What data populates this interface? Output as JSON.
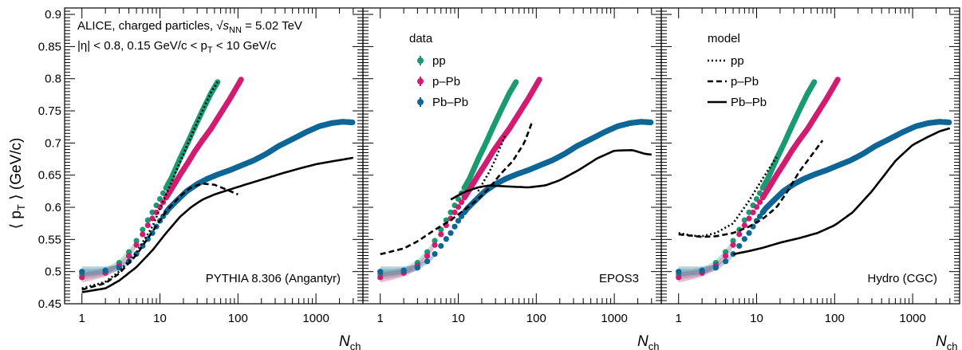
{
  "colors": {
    "pp": "#1a9a73",
    "pPb": "#d11c72",
    "PbPb": "#0e6696",
    "model": "#000000"
  },
  "axis": {
    "y_label_main": "⟨ p",
    "y_label_sub": "T",
    "y_label_unit": "⟩ (GeV/c)",
    "x_label_main": "N",
    "x_label_sub": "ch",
    "yticks": [
      "0.45",
      "0.5",
      "0.55",
      "0.6",
      "0.65",
      "0.7",
      "0.75",
      "0.8",
      "0.85",
      "0.9"
    ],
    "xticks": [
      "1",
      "10",
      "100",
      "1000"
    ]
  },
  "annotation": {
    "line1_a": "ALICE, charged particles,",
    "line1_b": "s",
    "line1_b_sub": "NN",
    "line1_c": "= 5.02 TeV",
    "line2_a": "|η| < 0.8, 0.15 GeV/c < p",
    "line2_sub": "T",
    "line2_b": "< 10 GeV/c"
  },
  "legend_data": {
    "title": "data",
    "items": [
      "pp",
      "p–Pb",
      "Pb–Pb"
    ]
  },
  "legend_model": {
    "title": "model",
    "items": [
      "pp",
      "p–Pb",
      "Pb–Pb"
    ]
  },
  "panel_labels": [
    "PYTHIA 8.306 (Angantyr)",
    "EPOS3",
    "Hydro (CGC)"
  ],
  "chart_data": {
    "type": "scatter",
    "xscale": "log",
    "xlim": [
      0.6,
      4000
    ],
    "ylim": [
      0.45,
      0.91
    ],
    "data_series": [
      {
        "name": "pp",
        "x": [
          1,
          1.4,
          2,
          2.8,
          3.5,
          4.5,
          5.5,
          7,
          9,
          11,
          14,
          18,
          23,
          28,
          35,
          45,
          55
        ],
        "y": [
          0.496,
          0.497,
          0.5,
          0.51,
          0.522,
          0.538,
          0.557,
          0.58,
          0.603,
          0.622,
          0.645,
          0.675,
          0.702,
          0.725,
          0.75,
          0.777,
          0.795
        ]
      },
      {
        "name": "p–Pb",
        "x": [
          1,
          1.4,
          2,
          2.8,
          3.5,
          4.5,
          5.5,
          7,
          9,
          11,
          14,
          18,
          23,
          28,
          35,
          45,
          60,
          80,
          110
        ],
        "y": [
          0.491,
          0.494,
          0.498,
          0.506,
          0.516,
          0.532,
          0.55,
          0.572,
          0.592,
          0.608,
          0.628,
          0.65,
          0.67,
          0.687,
          0.704,
          0.722,
          0.746,
          0.77,
          0.799
        ]
      },
      {
        "name": "Pb–Pb",
        "x": [
          1,
          2,
          3,
          4.5,
          6,
          8,
          10,
          13,
          17,
          22,
          30,
          40,
          55,
          80,
          110,
          160,
          230,
          330,
          500,
          750,
          1100,
          1600,
          2200,
          3000
        ],
        "y": [
          0.5,
          0.502,
          0.506,
          0.52,
          0.54,
          0.56,
          0.579,
          0.598,
          0.612,
          0.625,
          0.636,
          0.644,
          0.651,
          0.658,
          0.665,
          0.673,
          0.683,
          0.695,
          0.706,
          0.717,
          0.726,
          0.731,
          0.733,
          0.732
        ]
      }
    ],
    "models": {
      "PYTHIA 8.306 (Angantyr)": [
        {
          "name": "pp",
          "x": [
            1,
            2,
            3,
            5,
            8,
            12,
            18,
            25,
            35,
            45,
            55
          ],
          "y": [
            0.474,
            0.484,
            0.5,
            0.53,
            0.57,
            0.62,
            0.67,
            0.71,
            0.75,
            0.778,
            0.795
          ]
        },
        {
          "name": "p–Pb",
          "x": [
            1,
            2,
            3,
            5,
            8,
            12,
            18,
            25,
            35,
            50,
            70,
            100
          ],
          "y": [
            0.472,
            0.482,
            0.497,
            0.526,
            0.562,
            0.594,
            0.617,
            0.631,
            0.637,
            0.635,
            0.628,
            0.62
          ]
        },
        {
          "name": "Pb–Pb",
          "x": [
            1,
            2,
            3,
            5,
            8,
            12,
            18,
            25,
            35,
            50,
            80,
            130,
            200,
            350,
            600,
            1000,
            1700,
            3000
          ],
          "y": [
            0.468,
            0.474,
            0.486,
            0.507,
            0.533,
            0.56,
            0.585,
            0.6,
            0.612,
            0.62,
            0.628,
            0.636,
            0.643,
            0.652,
            0.66,
            0.667,
            0.672,
            0.677
          ]
        }
      ],
      "EPOS3": [
        {
          "name": "pp",
          "x": [
            18,
            20,
            25,
            30,
            35,
            40
          ],
          "y": [
            0.625,
            0.635,
            0.655,
            0.675,
            0.695,
            0.712
          ]
        },
        {
          "name": "p–Pb",
          "x": [
            1,
            2,
            3,
            5,
            8,
            12,
            18,
            25,
            35,
            50,
            70,
            90
          ],
          "y": [
            0.527,
            0.536,
            0.547,
            0.565,
            0.58,
            0.596,
            0.613,
            0.63,
            0.652,
            0.672,
            0.7,
            0.735
          ]
        },
        {
          "name": "Pb–Pb",
          "x": [
            8,
            12,
            18,
            25,
            35,
            50,
            80,
            130,
            200,
            350,
            600,
            1000,
            1700,
            2500,
            3000
          ],
          "y": [
            0.612,
            0.624,
            0.631,
            0.634,
            0.633,
            0.632,
            0.631,
            0.634,
            0.642,
            0.658,
            0.676,
            0.688,
            0.689,
            0.683,
            0.682
          ]
        }
      ],
      "Hydro (CGC)": [
        {
          "name": "pp",
          "x": [
            1,
            1.5,
            2,
            3,
            5,
            8,
            12,
            18
          ],
          "y": [
            0.56,
            0.556,
            0.555,
            0.56,
            0.575,
            0.61,
            0.645,
            0.678
          ]
        },
        {
          "name": "p–Pb",
          "x": [
            1,
            2,
            3,
            5,
            8,
            12,
            18,
            25,
            35,
            50,
            70
          ],
          "y": [
            0.558,
            0.554,
            0.555,
            0.56,
            0.57,
            0.582,
            0.6,
            0.625,
            0.655,
            0.68,
            0.704
          ]
        },
        {
          "name": "Pb–Pb",
          "x": [
            5,
            8,
            12,
            20,
            35,
            60,
            100,
            170,
            300,
            600,
            1000,
            1600,
            2200,
            3000
          ],
          "y": [
            0.527,
            0.532,
            0.537,
            0.545,
            0.552,
            0.56,
            0.572,
            0.592,
            0.625,
            0.672,
            0.697,
            0.71,
            0.718,
            0.723
          ]
        }
      ]
    }
  }
}
